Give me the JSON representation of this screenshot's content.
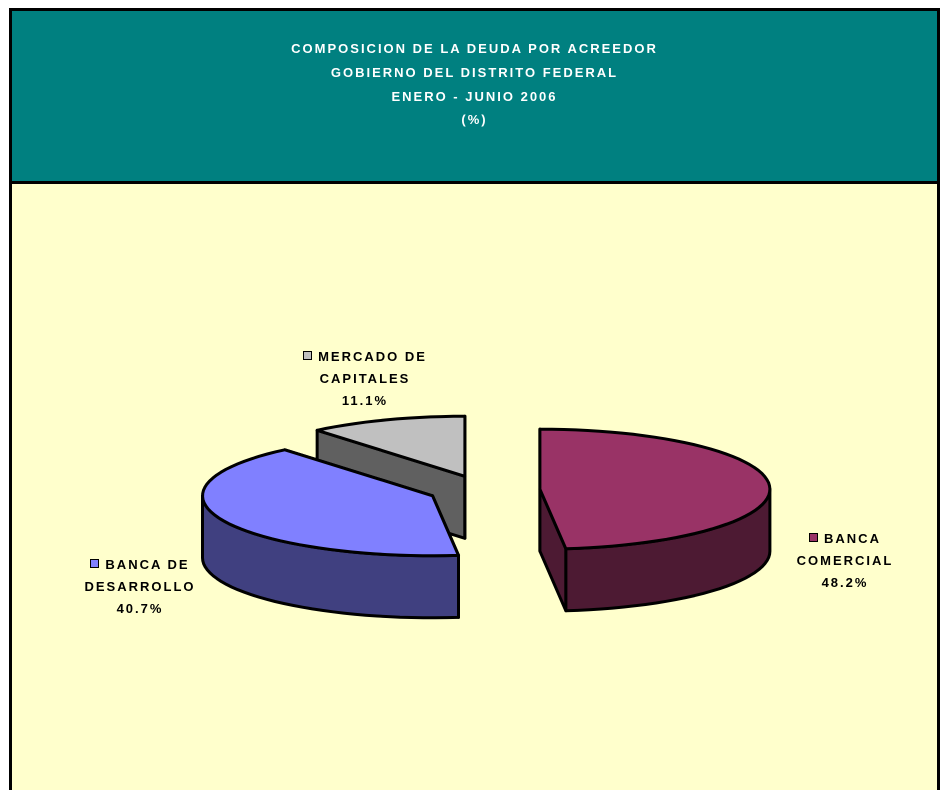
{
  "chart_data": {
    "type": "pie3d",
    "title": "COMPOSICION DE LA DEUDA POR ACREEDOR",
    "subtitle": [
      "GOBIERNO DEL DISTRITO FEDERAL",
      "ENERO - JUNIO 2006",
      "(%)"
    ],
    "categories": [
      "BANCA COMERCIAL",
      "BANCA DE DESARROLLO",
      "MERCADO DE CAPITALES"
    ],
    "values": [
      48.2,
      40.7,
      11.1
    ],
    "value_labels": [
      "48.2%",
      "40.7%",
      "11.1%"
    ],
    "colors": [
      "#993366",
      "#8080ff",
      "#c0c0c0"
    ]
  }
}
